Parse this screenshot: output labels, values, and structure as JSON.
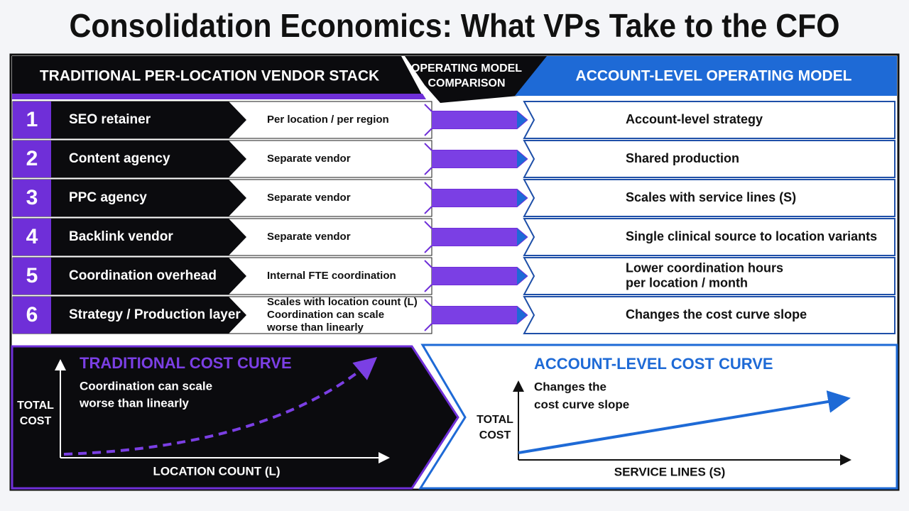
{
  "title": "Consolidation Economics: What VPs Take to the CFO",
  "left_header": "TRADITIONAL PER-LOCATION VENDOR STACK",
  "center_header": [
    "OPERATING MODEL",
    "COMPARISON"
  ],
  "right_header": "ACCOUNT-LEVEL OPERATING MODEL",
  "rows": [
    {
      "number": "1",
      "name": "SEO retainer",
      "detail": [
        "Per location / per region"
      ],
      "account": [
        "Account-level strategy"
      ]
    },
    {
      "number": "2",
      "name": "Content agency",
      "detail": [
        "Separate vendor"
      ],
      "account": [
        "Shared production"
      ]
    },
    {
      "number": "3",
      "name": "PPC agency",
      "detail": [
        "Separate vendor"
      ],
      "account": [
        "Scales with service lines (S)"
      ]
    },
    {
      "number": "4",
      "name": "Backlink vendor",
      "detail": [
        "Separate vendor"
      ],
      "account": [
        "Single clinical source to location variants"
      ]
    },
    {
      "number": "5",
      "name": "Coordination overhead",
      "detail": [
        "Internal FTE coordination"
      ],
      "account": [
        "Lower coordination hours",
        "per location / month"
      ]
    },
    {
      "number": "6",
      "name": "Strategy / Production layer",
      "detail": [
        "Scales with location count (L)",
        "Coordination can scale",
        "worse than linearly"
      ],
      "account": [
        "Changes the cost curve slope"
      ]
    }
  ],
  "traditional_curve": {
    "title": "TRADITIONAL COST CURVE",
    "note": [
      "Coordination can scale",
      "worse than linearly"
    ],
    "y_label": [
      "TOTAL",
      "COST"
    ],
    "x_label": "LOCATION COUNT (L)"
  },
  "account_curve": {
    "title": "ACCOUNT-LEVEL COST CURVE",
    "note": [
      "Changes the",
      "cost curve slope"
    ],
    "y_label": [
      "TOTAL",
      "COST"
    ],
    "x_label": "SERVICE LINES (S)"
  }
}
